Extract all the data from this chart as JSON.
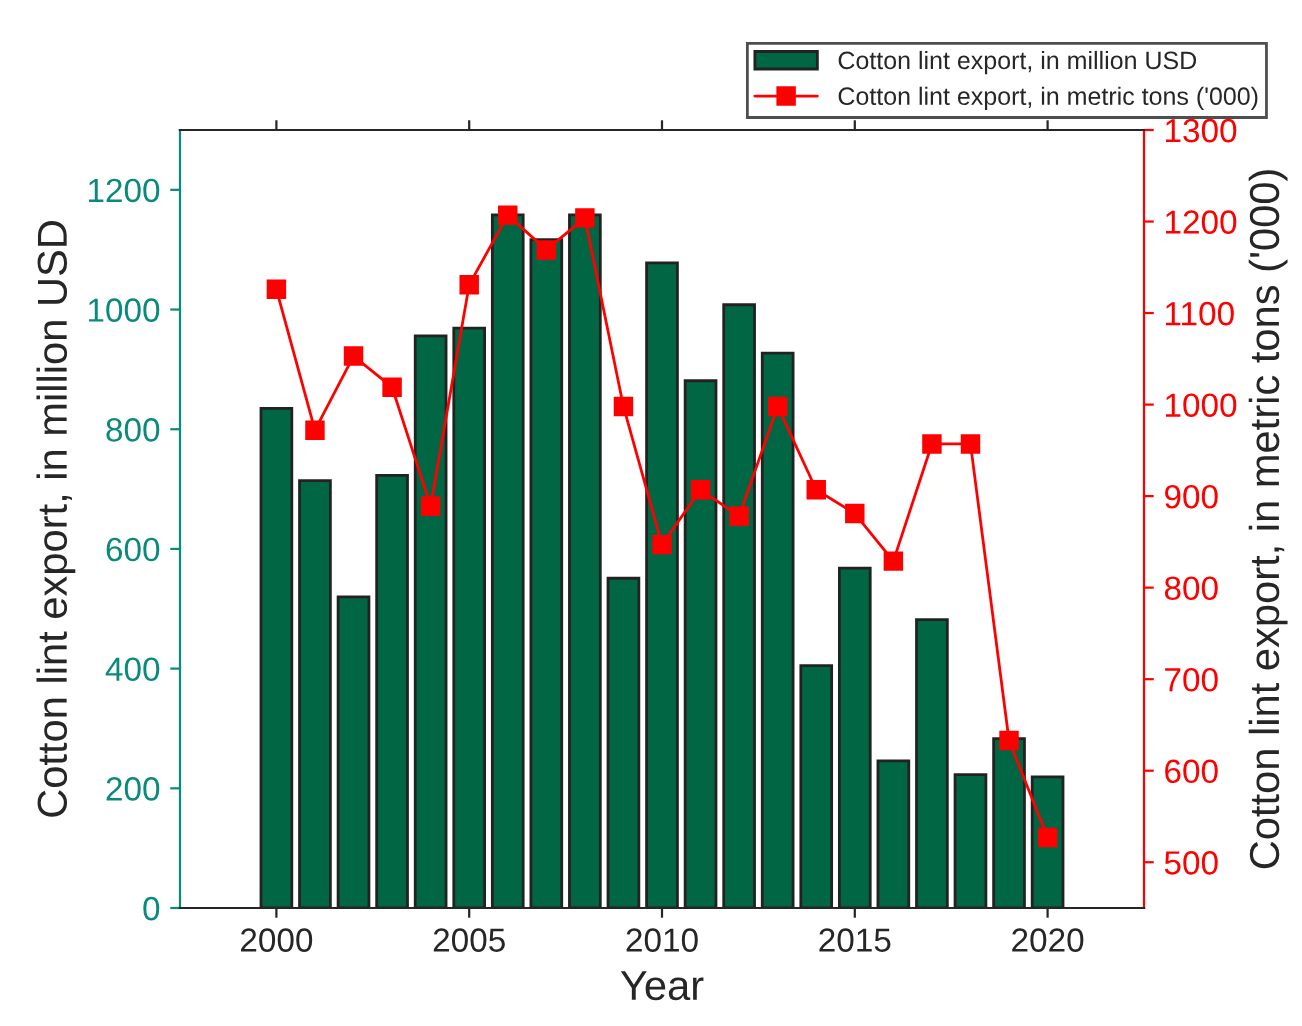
{
  "chart_data": {
    "type": "bar",
    "xlabel": "Year",
    "ylabel": "Cotton lint export, in million USD",
    "y2label": "Cotton lint export, in metric tons ('000)",
    "x": [
      2000,
      2001,
      2002,
      2003,
      2004,
      2005,
      2006,
      2007,
      2008,
      2009,
      2010,
      2011,
      2012,
      2013,
      2014,
      2015,
      2016,
      2017,
      2018,
      2019,
      2020
    ],
    "series": [
      {
        "name": "Cotton lint export, in million USD",
        "color": "#006644",
        "values": [
          835,
          714,
          520,
          723,
          956,
          969,
          1158,
          1117,
          1158,
          551,
          1078,
          881,
          1008,
          927,
          405,
          568,
          246,
          482,
          223,
          283,
          219
        ]
      },
      {
        "name": "Cotton lint export, in metric tons ('000)",
        "type": "line",
        "axis": "y2",
        "color": "#ff0000",
        "marker": "square",
        "line_style": "solid",
        "values": [
          1126,
          972,
          1053,
          1019,
          889,
          1131,
          1207,
          1169,
          1204,
          998,
          847,
          907,
          878,
          998,
          907,
          881,
          829,
          957,
          957,
          633,
          527
        ]
      }
    ],
    "xlim": [
      1997.5,
      2022.5
    ],
    "xticks": [
      2000,
      2005,
      2010,
      2015,
      2020
    ],
    "ylim": [
      0,
      1300
    ],
    "yticks": [
      0,
      200,
      400,
      600,
      800,
      1000,
      1200
    ],
    "y2lim": [
      450,
      1300
    ],
    "y2ticks": [
      500,
      600,
      700,
      800,
      900,
      1000,
      1100,
      1200,
      1300
    ],
    "legend": "top right",
    "grid": false
  }
}
